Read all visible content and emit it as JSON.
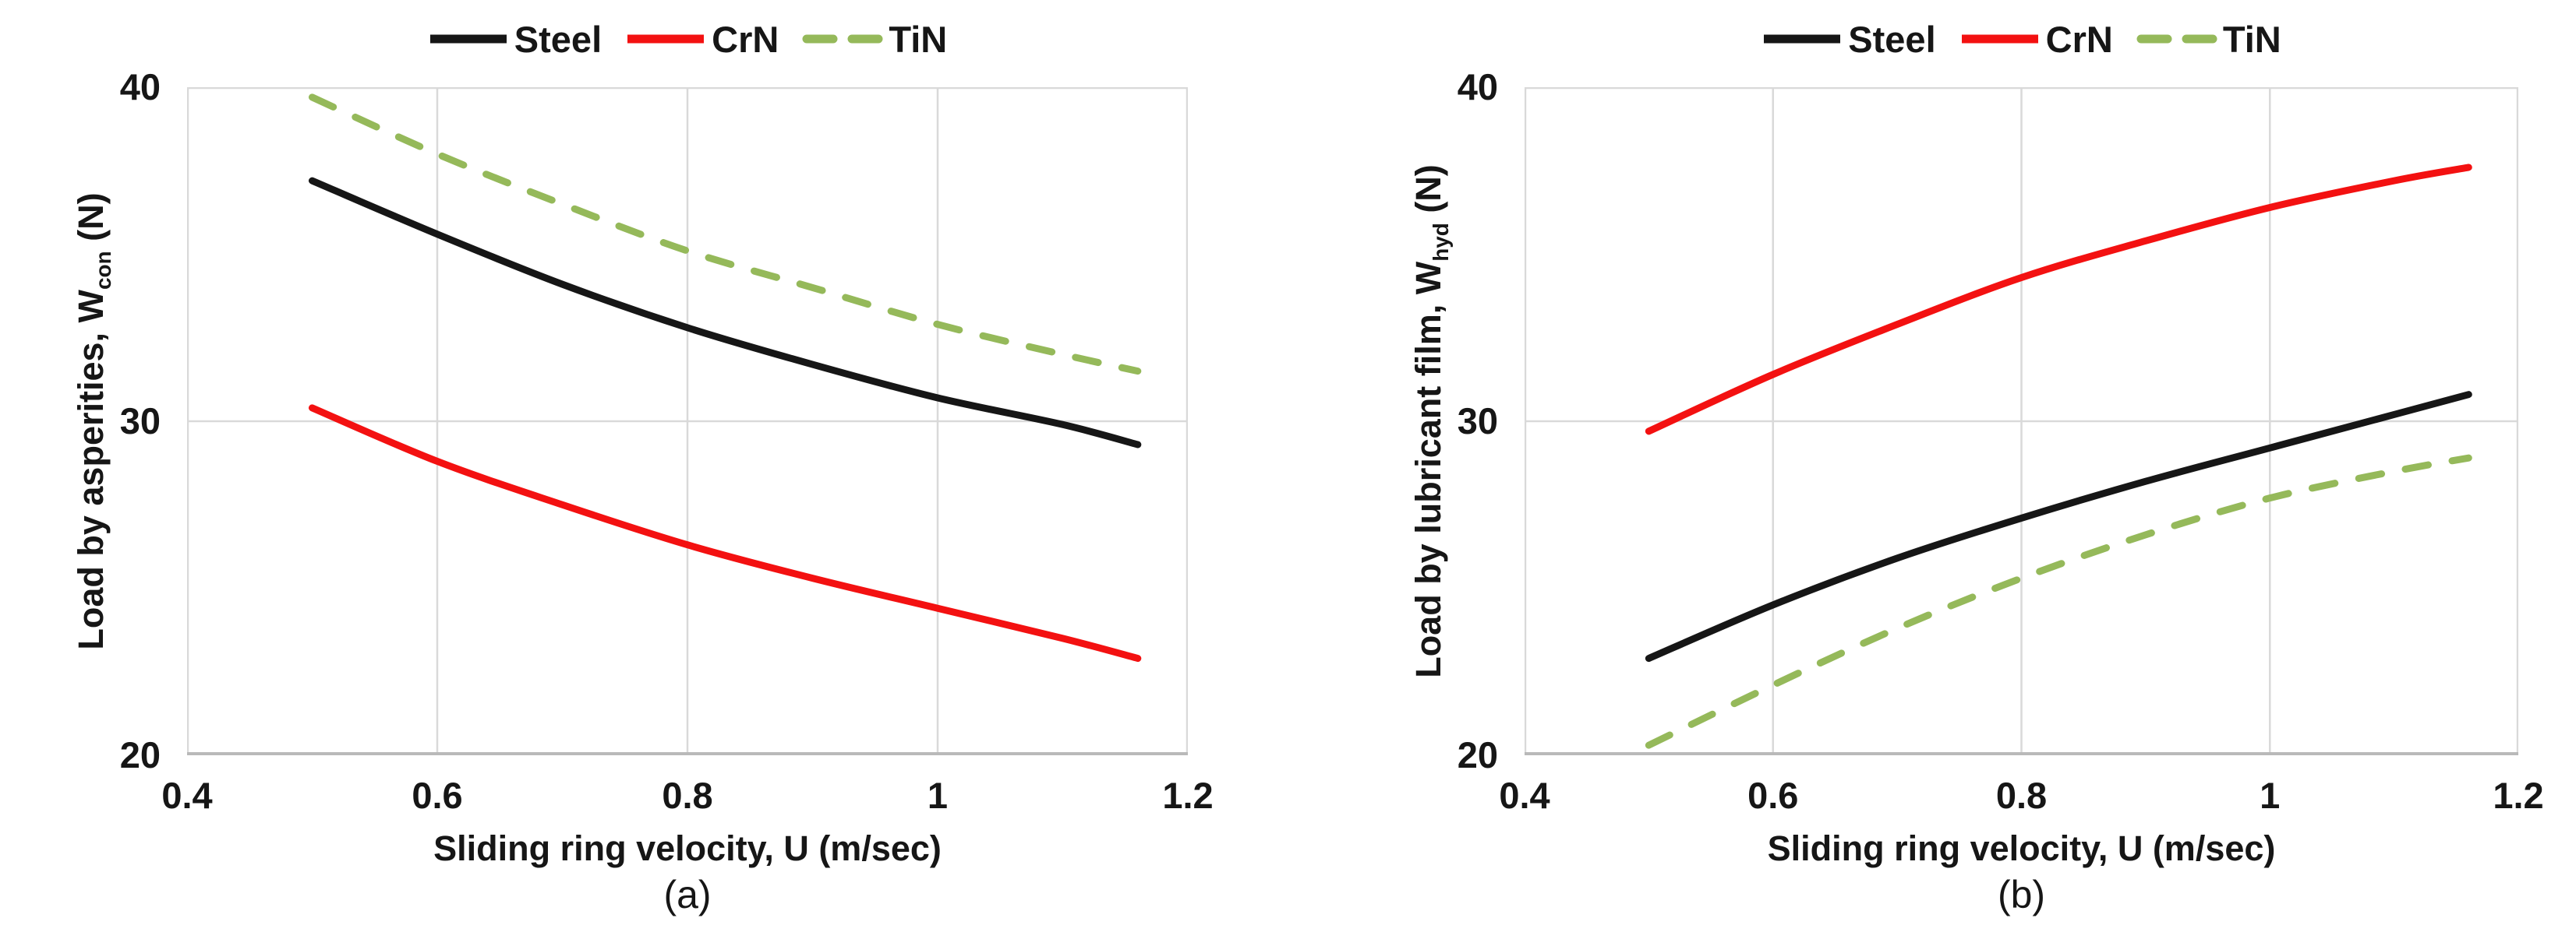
{
  "colors": {
    "steel": "#161616",
    "crn": "#f31111",
    "tin": "#95b95a",
    "grid": "#d9d9d9",
    "axis_line": "#b9b9b9",
    "text": "#161616"
  },
  "chart_data": [
    {
      "id": "a",
      "type": "line",
      "caption": "(a)",
      "xlabel": "Sliding ring velocity, U (m/sec)",
      "ylabel_prefix": "Load by asperities, W",
      "ylabel_sub": "con",
      "ylabel_suffix": " (N)",
      "xlim": [
        0.4,
        1.2
      ],
      "ylim": [
        20,
        40
      ],
      "xticks": [
        "0.4",
        "0.6",
        "0.8",
        "1",
        "1.2"
      ],
      "xtick_values": [
        0.4,
        0.6,
        0.8,
        1,
        1.2
      ],
      "yticks": [
        "20",
        "30",
        "40"
      ],
      "ytick_values": [
        20,
        30,
        40
      ],
      "grid": true,
      "legend_position": "top-center",
      "x": [
        0.5,
        0.6,
        0.7,
        0.8,
        0.9,
        1.0,
        1.1,
        1.16
      ],
      "series": [
        {
          "name": "Steel",
          "color_key": "steel",
          "dash": "solid",
          "values": [
            37.2,
            35.6,
            34.1,
            32.8,
            31.7,
            30.7,
            29.9,
            29.3
          ]
        },
        {
          "name": "CrN",
          "color_key": "crn",
          "dash": "solid",
          "values": [
            30.4,
            28.8,
            27.5,
            26.3,
            25.3,
            24.4,
            23.5,
            22.9
          ]
        },
        {
          "name": "TiN",
          "color_key": "tin",
          "dash": "dashed",
          "values": [
            39.7,
            38.0,
            36.5,
            35.1,
            34.0,
            32.9,
            32.0,
            31.5
          ]
        }
      ]
    },
    {
      "id": "b",
      "type": "line",
      "caption": "(b)",
      "xlabel": "Sliding ring velocity, U (m/sec)",
      "ylabel_prefix": "Load by lubricant film, W",
      "ylabel_sub": "hyd",
      "ylabel_suffix": " (N)",
      "xlim": [
        0.4,
        1.2
      ],
      "ylim": [
        20,
        40
      ],
      "xticks": [
        "0.4",
        "0.6",
        "0.8",
        "1",
        "1.2"
      ],
      "xtick_values": [
        0.4,
        0.6,
        0.8,
        1,
        1.2
      ],
      "yticks": [
        "20",
        "30",
        "40"
      ],
      "ytick_values": [
        20,
        30,
        40
      ],
      "grid": true,
      "legend_position": "top-center",
      "x": [
        0.5,
        0.6,
        0.7,
        0.8,
        0.9,
        1.0,
        1.1,
        1.16
      ],
      "series": [
        {
          "name": "Steel",
          "color_key": "steel",
          "dash": "solid",
          "values": [
            22.9,
            24.5,
            25.9,
            27.1,
            28.2,
            29.2,
            30.2,
            30.8
          ]
        },
        {
          "name": "CrN",
          "color_key": "crn",
          "dash": "solid",
          "values": [
            29.7,
            31.4,
            32.9,
            34.3,
            35.4,
            36.4,
            37.2,
            37.6
          ]
        },
        {
          "name": "TiN",
          "color_key": "tin",
          "dash": "dashed",
          "values": [
            20.3,
            22.1,
            23.8,
            25.3,
            26.6,
            27.7,
            28.5,
            28.9
          ]
        }
      ]
    }
  ]
}
